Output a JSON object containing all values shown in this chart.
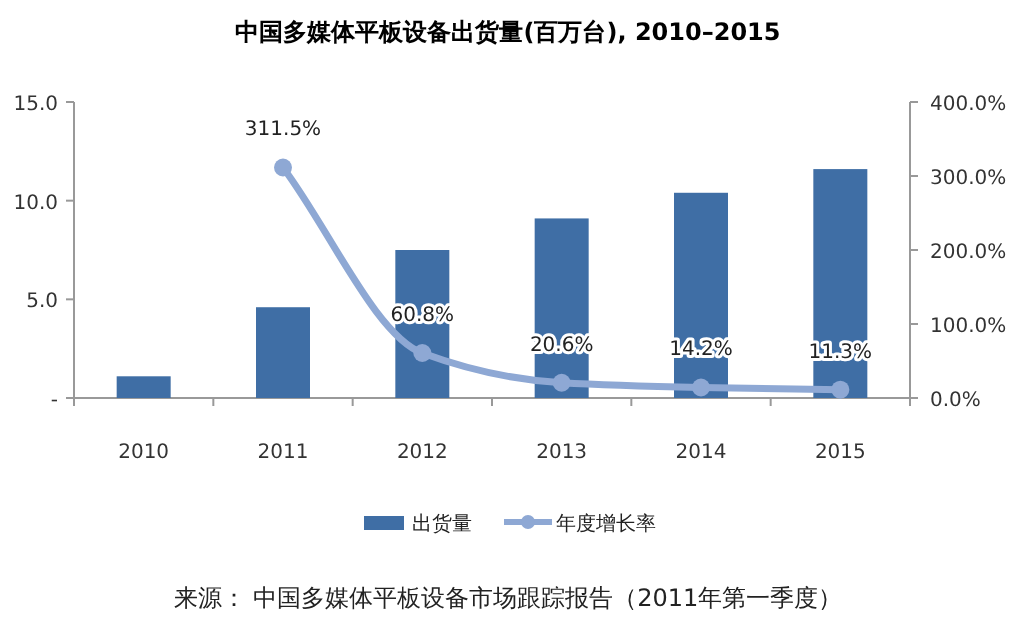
{
  "chart_data": {
    "type": "bar",
    "title": "中国多媒体平板设备出货量(百万台), 2010–2015",
    "categories": [
      "2010",
      "2011",
      "2012",
      "2013",
      "2014",
      "2015"
    ],
    "series": [
      {
        "name": "出货量",
        "color": "#3f6ea5",
        "values": [
          1.1,
          4.6,
          7.5,
          9.1,
          10.4,
          11.6
        ]
      },
      {
        "name": "年度增长率",
        "type": "line",
        "axis": "y2",
        "color": "#8ea8d4",
        "marker": "circle",
        "values": [
          null,
          311.5,
          60.8,
          20.6,
          14.2,
          11.3
        ],
        "value_labels": [
          null,
          "311.5%",
          "60.8%",
          "20.6%",
          "14.2%",
          "11.3%"
        ]
      }
    ],
    "ylim": [
      0,
      15
    ],
    "yticks": [
      {
        "value": 0,
        "label": "-"
      },
      {
        "value": 5,
        "label": "5.0"
      },
      {
        "value": 10,
        "label": "10.0"
      },
      {
        "value": 15,
        "label": "15.0"
      }
    ],
    "y2lim": [
      0,
      400
    ],
    "y2ticks": [
      {
        "value": 0,
        "label": "0.0%"
      },
      {
        "value": 100,
        "label": "100.0%"
      },
      {
        "value": 200,
        "label": "200.0%"
      },
      {
        "value": 300,
        "label": "300.0%"
      },
      {
        "value": 400,
        "label": "400.0%"
      }
    ],
    "legend": "bottom",
    "annotations": [
      "来源： 中国多媒体平板设备市场跟踪报告（2011年第一季度）"
    ]
  }
}
